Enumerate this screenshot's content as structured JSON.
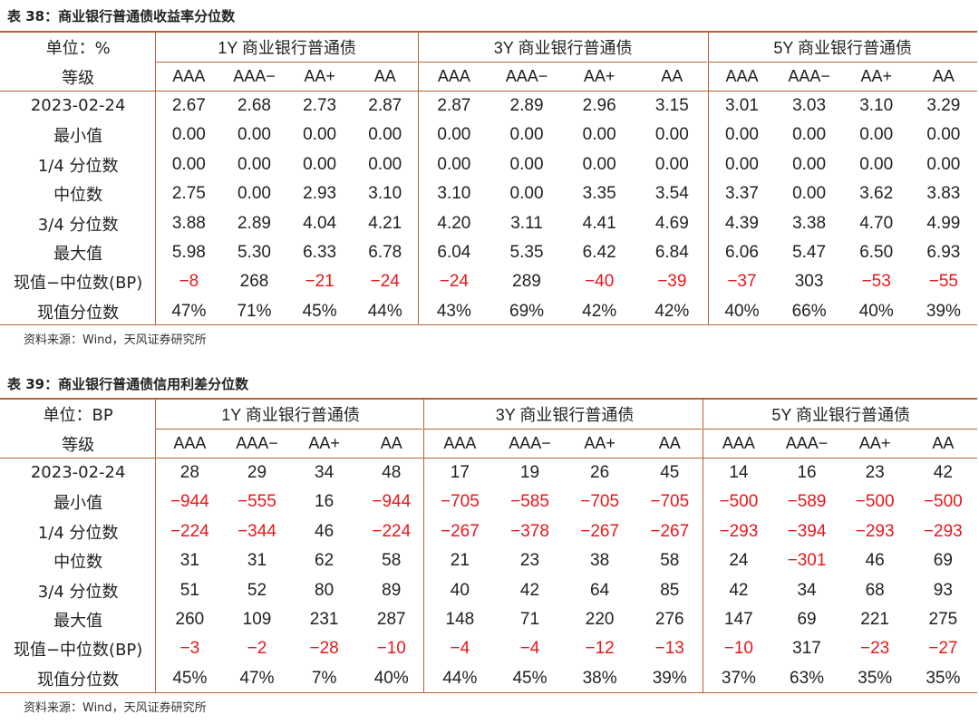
{
  "tables": [
    {
      "caption": "表 38：商业银行普通债收益率分位数",
      "unit_label": "单位：%",
      "grade_label": "等级",
      "groups": [
        "1Y 商业银行普通债",
        "3Y 商业银行普通债",
        "5Y 商业银行普通债"
      ],
      "grades": [
        "AAA",
        "AAA−",
        "AA+",
        "AA",
        "AAA",
        "AAA−",
        "AA+",
        "AA",
        "AAA",
        "AAA−",
        "AA+",
        "AA"
      ],
      "rows": [
        {
          "label": "2023-02-24",
          "cells": [
            "2.67",
            "2.68",
            "2.73",
            "2.87",
            "2.87",
            "2.89",
            "2.96",
            "3.15",
            "3.01",
            "3.03",
            "3.10",
            "3.29"
          ]
        },
        {
          "label": "最小值",
          "cells": [
            "0.00",
            "0.00",
            "0.00",
            "0.00",
            "0.00",
            "0.00",
            "0.00",
            "0.00",
            "0.00",
            "0.00",
            "0.00",
            "0.00"
          ]
        },
        {
          "label": "1/4 分位数",
          "cells": [
            "0.00",
            "0.00",
            "0.00",
            "0.00",
            "0.00",
            "0.00",
            "0.00",
            "0.00",
            "0.00",
            "0.00",
            "0.00",
            "0.00"
          ]
        },
        {
          "label": "中位数",
          "cells": [
            "2.75",
            "0.00",
            "2.93",
            "3.10",
            "3.10",
            "0.00",
            "3.35",
            "3.54",
            "3.37",
            "0.00",
            "3.62",
            "3.83"
          ]
        },
        {
          "label": "3/4 分位数",
          "cells": [
            "3.88",
            "2.89",
            "4.04",
            "4.21",
            "4.20",
            "3.11",
            "4.41",
            "4.69",
            "4.39",
            "3.38",
            "4.70",
            "4.99"
          ]
        },
        {
          "label": "最大值",
          "cells": [
            "5.98",
            "5.30",
            "6.33",
            "6.78",
            "6.04",
            "5.35",
            "6.42",
            "6.84",
            "6.06",
            "5.47",
            "6.50",
            "6.93"
          ]
        },
        {
          "label": "现值−中位数(BP)",
          "cells": [
            "−8",
            "268",
            "−21",
            "−24",
            "−24",
            "289",
            "−40",
            "−39",
            "−37",
            "303",
            "−53",
            "−55"
          ]
        },
        {
          "label": "现值分位数",
          "cells": [
            "47%",
            "71%",
            "45%",
            "44%",
            "43%",
            "69%",
            "42%",
            "42%",
            "40%",
            "66%",
            "40%",
            "39%"
          ]
        }
      ],
      "source": "资料来源：Wind，天风证券研究所"
    },
    {
      "caption": "表 39：商业银行普通债信用利差分位数",
      "unit_label": "单位：BP",
      "grade_label": "等级",
      "groups": [
        "1Y 商业银行普通债",
        "3Y 商业银行普通债",
        "5Y 商业银行普通债"
      ],
      "grades": [
        "AAA",
        "AAA−",
        "AA+",
        "AA",
        "AAA",
        "AAA−",
        "AA+",
        "AA",
        "AAA",
        "AAA−",
        "AA+",
        "AA"
      ],
      "rows": [
        {
          "label": "2023-02-24",
          "cells": [
            "28",
            "29",
            "34",
            "48",
            "17",
            "19",
            "26",
            "45",
            "14",
            "16",
            "23",
            "42"
          ]
        },
        {
          "label": "最小值",
          "cells": [
            "−944",
            "−555",
            "16",
            "−944",
            "−705",
            "−585",
            "−705",
            "−705",
            "−500",
            "−589",
            "−500",
            "−500"
          ]
        },
        {
          "label": "1/4 分位数",
          "cells": [
            "−224",
            "−344",
            "46",
            "−224",
            "−267",
            "−378",
            "−267",
            "−267",
            "−293",
            "−394",
            "−293",
            "−293"
          ]
        },
        {
          "label": "中位数",
          "cells": [
            "31",
            "31",
            "62",
            "58",
            "21",
            "23",
            "38",
            "58",
            "24",
            "−301",
            "46",
            "69"
          ]
        },
        {
          "label": "3/4 分位数",
          "cells": [
            "51",
            "52",
            "80",
            "89",
            "40",
            "42",
            "64",
            "85",
            "42",
            "34",
            "68",
            "93"
          ]
        },
        {
          "label": "最大值",
          "cells": [
            "260",
            "109",
            "231",
            "287",
            "148",
            "71",
            "220",
            "276",
            "147",
            "69",
            "221",
            "275"
          ]
        },
        {
          "label": "现值−中位数(BP)",
          "cells": [
            "−3",
            "−2",
            "−28",
            "−10",
            "−4",
            "−4",
            "−12",
            "−13",
            "−10",
            "317",
            "−23",
            "−27"
          ]
        },
        {
          "label": "现值分位数",
          "cells": [
            "45%",
            "47%",
            "7%",
            "40%",
            "44%",
            "45%",
            "38%",
            "39%",
            "37%",
            "63%",
            "35%",
            "35%"
          ]
        }
      ],
      "source": "资料来源：Wind，天风证券研究所"
    }
  ],
  "colors": {
    "rule": "#b4643a",
    "negative": "#e8171b",
    "text": "#222222"
  }
}
